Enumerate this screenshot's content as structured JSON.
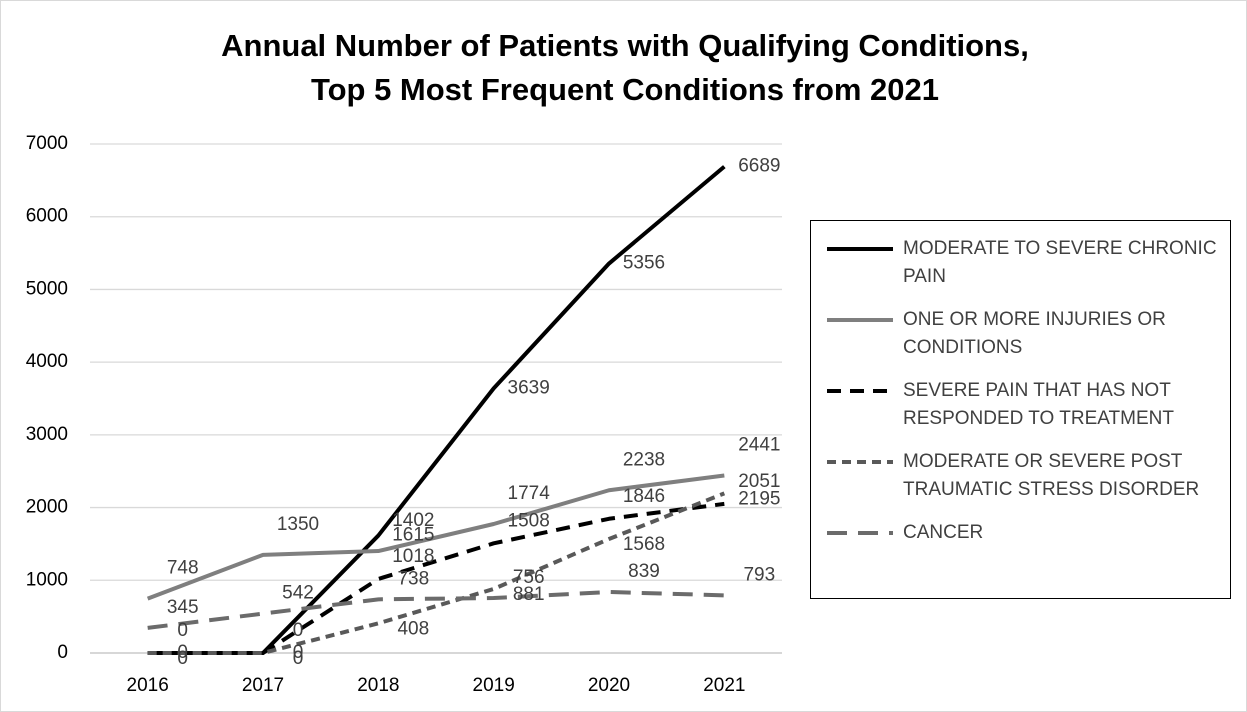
{
  "chart_data": {
    "type": "line",
    "title": [
      "Annual Number of Patients with Qualifying Conditions,",
      "Top 5 Most Frequent Conditions from 2021"
    ],
    "categories": [
      "2016",
      "2017",
      "2018",
      "2019",
      "2020",
      "2021"
    ],
    "series": [
      {
        "name": "MODERATE TO SEVERE CHRONIC PAIN",
        "color": "#000000",
        "dash": "solid",
        "values": [
          0,
          0,
          1615,
          3639,
          5356,
          6689
        ]
      },
      {
        "name": "ONE OR MORE INJURIES OR CONDITIONS",
        "color": "#7f7f7f",
        "dash": "solid",
        "values": [
          748,
          1350,
          1402,
          1774,
          2238,
          2441
        ]
      },
      {
        "name": "SEVERE PAIN THAT HAS NOT RESPONDED TO TREATMENT",
        "color": "#000000",
        "dash": "dash",
        "values": [
          0,
          0,
          1018,
          1508,
          1846,
          2051
        ]
      },
      {
        "name": "MODERATE OR SEVERE POST TRAUMATIC STRESS DISORDER",
        "color": "#595959",
        "dash": "short-dash",
        "values": [
          0,
          0,
          408,
          881,
          1568,
          2195
        ]
      },
      {
        "name": "CANCER",
        "color": "#6b6b6b",
        "dash": "long-dash",
        "values": [
          345,
          542,
          738,
          756,
          839,
          793
        ]
      }
    ],
    "ylim": [
      0,
      7000
    ],
    "yticks": [
      0,
      1000,
      2000,
      3000,
      4000,
      5000,
      6000,
      7000
    ],
    "grid": true,
    "legend": "right"
  }
}
